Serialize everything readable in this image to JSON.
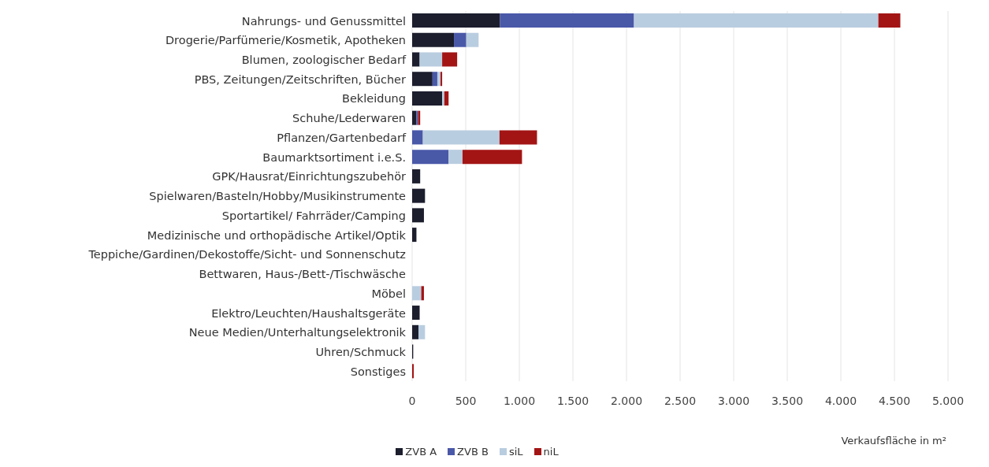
{
  "chart_data": {
    "type": "bar",
    "orientation": "horizontal",
    "stacked": true,
    "xlabel": "Verkaufsfläche in m²",
    "categories": [
      "Nahrungs- und Genussmittel",
      "Drogerie/Parfümerie/Kosmetik, Apotheken",
      "Blumen, zoologischer Bedarf",
      "PBS, Zeitungen/Zeitschriften, Bücher",
      "Bekleidung",
      "Schuhe/Lederwaren",
      "Pflanzen/Gartenbedarf",
      "Baumarktsortiment i.e.S.",
      "GPK/Hausrat/Einrichtungszubehör",
      "Spielwaren/Basteln/Hobby/Musikinstrumente",
      "Sportartikel/ Fahrräder/Camping",
      "Medizinische und orthopädische Artikel/Optik",
      "Teppiche/Gardinen/Dekostoffe/Sicht- und Sonnenschutz",
      "Bettwaren, Haus-/Bett-/Tischwäsche",
      "Möbel",
      "Elektro/Leuchten/Haushaltsgeräte",
      "Neue Medien/Unterhaltungselektronik",
      "Uhren/Schmuck",
      "Sonstiges"
    ],
    "series": [
      {
        "name": "ZVB A",
        "color": "#1c1e2e",
        "values": [
          820,
          390,
          70,
          190,
          280,
          40,
          0,
          0,
          75,
          120,
          110,
          40,
          0,
          0,
          0,
          70,
          60,
          10,
          0
        ]
      },
      {
        "name": "ZVB B",
        "color": "#4a58a8",
        "values": [
          1250,
          115,
          0,
          45,
          0,
          15,
          100,
          340,
          0,
          0,
          0,
          0,
          0,
          0,
          0,
          0,
          0,
          0,
          0
        ]
      },
      {
        "name": "siL",
        "color": "#b9cde0",
        "values": [
          2280,
          115,
          210,
          30,
          20,
          0,
          715,
          130,
          0,
          0,
          0,
          0,
          0,
          0,
          85,
          0,
          60,
          0,
          0
        ]
      },
      {
        "name": "niL",
        "color": "#a31515",
        "values": [
          205,
          0,
          140,
          15,
          40,
          20,
          350,
          555,
          0,
          0,
          0,
          0,
          0,
          0,
          25,
          0,
          0,
          0,
          15
        ]
      }
    ],
    "xlim": [
      0,
      5000
    ],
    "xticks": [
      0,
      500,
      {
        "value": 1000,
        "label": "1.000"
      },
      {
        "value": 1500,
        "label": "1.500"
      },
      {
        "value": 2000,
        "label": "2.000"
      },
      {
        "value": 2500,
        "label": "2.500"
      },
      {
        "value": 3000,
        "label": "3.000"
      },
      {
        "value": 3500,
        "label": "3.500"
      },
      {
        "value": 4000,
        "label": "4.000"
      },
      {
        "value": 4500,
        "label": "4.500"
      },
      {
        "value": 5000,
        "label": "5.000"
      }
    ],
    "grid": "x",
    "legend": "bottom"
  }
}
